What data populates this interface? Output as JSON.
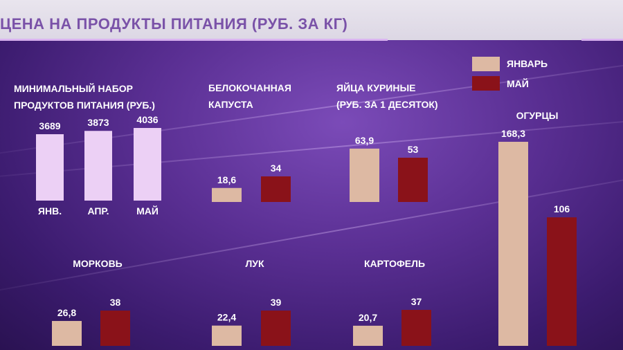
{
  "title": "ЦЕНА НА ПРОДУКТЫ ПИТАНИЯ (РУБ. ЗА КГ)",
  "colors": {
    "january": "#ddb9a3",
    "may": "#8a1219",
    "basket": "#ecd0f5"
  },
  "legend": [
    {
      "label": "ЯНВАРЬ",
      "color": "#ddb9a3"
    },
    {
      "label": "МАЙ",
      "color": "#8a1219"
    }
  ],
  "chart_data": [
    {
      "type": "bar",
      "title_lines": [
        "МИНИМАЛЬНЫЙ НАБОР",
        "ПРОДУКТОВ ПИТАНИЯ (РУБ.)"
      ],
      "categories": [
        "ЯНВ.",
        "АПР.",
        "МАЙ"
      ],
      "values": [
        3689,
        3873,
        4036
      ],
      "value_labels": [
        "3689",
        "3873",
        "4036"
      ]
    },
    {
      "type": "bar",
      "title_lines": [
        "БЕЛОКОЧАННАЯ",
        "КАПУСТА"
      ],
      "series": [
        {
          "name": "ЯНВАРЬ",
          "values": [
            18.6
          ]
        },
        {
          "name": "МАЙ",
          "values": [
            34
          ]
        }
      ],
      "value_labels": [
        "18,6",
        "34"
      ]
    },
    {
      "type": "bar",
      "title_lines": [
        "ЯЙЦА КУРИНЫЕ",
        "(РУБ. ЗА 1 ДЕСЯТОК)"
      ],
      "series": [
        {
          "name": "ЯНВАРЬ",
          "values": [
            63.9
          ]
        },
        {
          "name": "МАЙ",
          "values": [
            53
          ]
        }
      ],
      "value_labels": [
        "63,9",
        "53"
      ]
    },
    {
      "type": "bar",
      "title_lines": [
        "ОГУРЦЫ"
      ],
      "series": [
        {
          "name": "ЯНВАРЬ",
          "values": [
            168.3
          ]
        },
        {
          "name": "МАЙ",
          "values": [
            106
          ]
        }
      ],
      "value_labels": [
        "168,3",
        "106"
      ]
    },
    {
      "type": "bar",
      "title_lines": [
        "МОРКОВЬ"
      ],
      "series": [
        {
          "name": "ЯНВАРЬ",
          "values": [
            26.8
          ]
        },
        {
          "name": "МАЙ",
          "values": [
            38
          ]
        }
      ],
      "value_labels": [
        "26,8",
        "38"
      ]
    },
    {
      "type": "bar",
      "title_lines": [
        "ЛУК"
      ],
      "series": [
        {
          "name": "ЯНВАРЬ",
          "values": [
            22.4
          ]
        },
        {
          "name": "МАЙ",
          "values": [
            39
          ]
        }
      ],
      "value_labels": [
        "22,4",
        "39"
      ]
    },
    {
      "type": "bar",
      "title_lines": [
        "КАРТОФЕЛЬ"
      ],
      "series": [
        {
          "name": "ЯНВАРЬ",
          "values": [
            20.7
          ]
        },
        {
          "name": "МАЙ",
          "values": [
            37
          ]
        }
      ],
      "value_labels": [
        "20,7",
        "37"
      ]
    }
  ]
}
